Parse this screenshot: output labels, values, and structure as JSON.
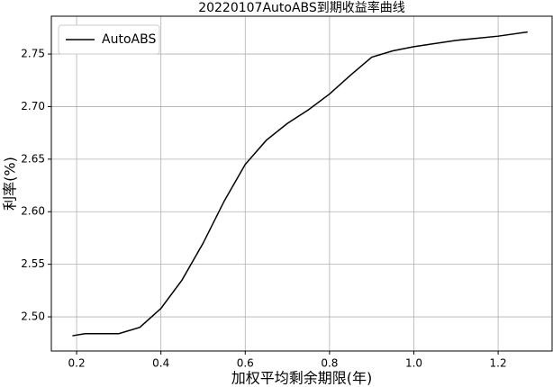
{
  "chart_data": {
    "type": "line",
    "title": "20220107AutoABS到期收益率曲线",
    "x_label": "加权平均剩余期限(年)",
    "y_label": "利率(%)",
    "x": [
      0.19,
      0.22,
      0.3,
      0.35,
      0.4,
      0.45,
      0.5,
      0.55,
      0.6,
      0.65,
      0.7,
      0.75,
      0.8,
      0.85,
      0.9,
      0.95,
      1.0,
      1.1,
      1.2,
      1.27
    ],
    "series": [
      {
        "name": "AutoABS",
        "color": "#000000",
        "values": [
          2.482,
          2.484,
          2.484,
          2.49,
          2.508,
          2.535,
          2.57,
          2.61,
          2.645,
          2.668,
          2.684,
          2.697,
          2.712,
          2.73,
          2.747,
          2.753,
          2.757,
          2.763,
          2.767,
          2.771
        ]
      }
    ],
    "xlim": [
      0.14,
      1.328
    ],
    "ylim": [
      2.4675,
      2.786
    ],
    "xticks": [
      0.2,
      0.4,
      0.6,
      0.8,
      1.0,
      1.2
    ],
    "yticks": [
      {
        "value": 2.5,
        "label": "2.50"
      },
      2.55,
      {
        "value": 2.6,
        "label": "2.60"
      },
      2.65,
      {
        "value": 2.7,
        "label": "2.70"
      },
      2.75
    ],
    "grid": true,
    "legend": "upper left"
  }
}
